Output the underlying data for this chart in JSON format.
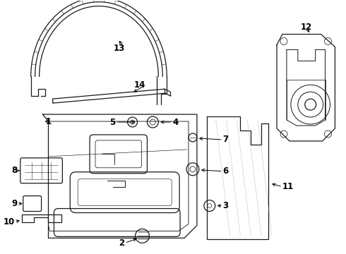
{
  "bg_color": "#ffffff",
  "line_color": "#1a1a1a",
  "lw": 0.9,
  "figsize": [
    4.9,
    3.6
  ],
  "dpi": 100
}
